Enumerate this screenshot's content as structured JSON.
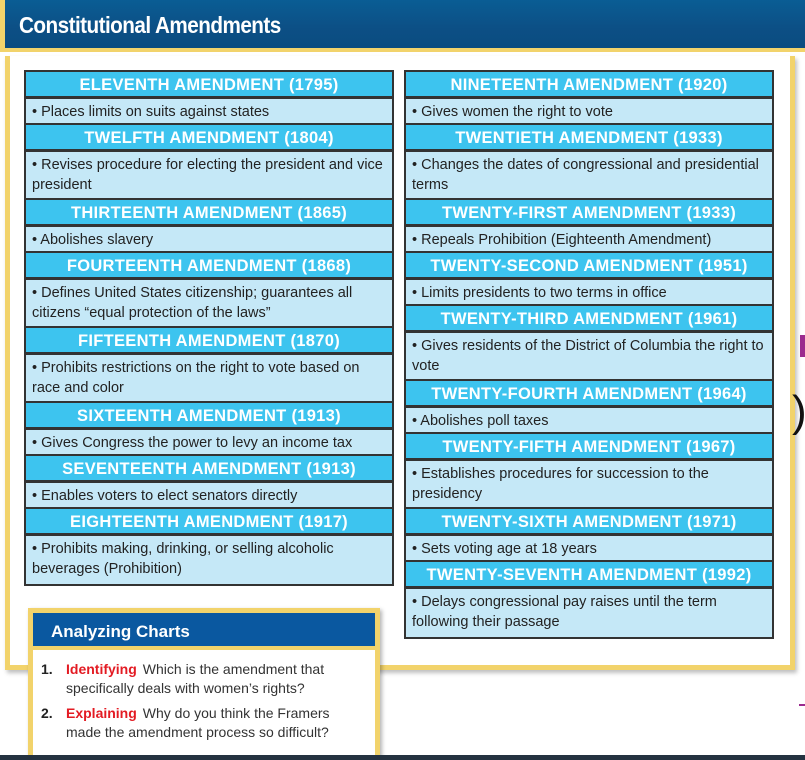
{
  "title": "Constitutional Amendments",
  "left": [
    {
      "h": "ELEVENTH AMENDMENT (1795)",
      "d": "• Places limits on suits against states",
      "lines": 1
    },
    {
      "h": "TWELFTH AMENDMENT (1804)",
      "d": "• Revises procedure for electing the president and vice president",
      "lines": 2
    },
    {
      "h": "THIRTEENTH AMENDMENT (1865)",
      "d": "• Abolishes slavery",
      "lines": 1
    },
    {
      "h": "FOURTEENTH AMENDMENT (1868)",
      "d": "• Defines United States citizenship; guarantees all citizens “equal protection of the laws”",
      "lines": 2
    },
    {
      "h": "FIFTEENTH AMENDMENT (1870)",
      "d": "• Prohibits restrictions on the right to vote based on race and color",
      "lines": 2
    },
    {
      "h": "SIXTEENTH AMENDMENT (1913)",
      "d": "• Gives Congress the power to levy an income tax",
      "lines": 1
    },
    {
      "h": "SEVENTEENTH AMENDMENT (1913)",
      "d": "• Enables voters to elect senators directly",
      "lines": 1
    },
    {
      "h": "EIGHTEENTH AMENDMENT (1917)",
      "d": "• Prohibits making, drinking, or selling alcoholic beverages (Prohibition)",
      "lines": 2
    }
  ],
  "right": [
    {
      "h": "NINETEENTH AMENDMENT (1920)",
      "d": "• Gives women the right to vote",
      "lines": 1
    },
    {
      "h": "TWENTIETH AMENDMENT (1933)",
      "d": "• Changes the dates of congressional and presidential terms",
      "lines": 2
    },
    {
      "h": "TWENTY-FIRST AMENDMENT (1933)",
      "d": "• Repeals Prohibition (Eighteenth Amendment)",
      "lines": 1
    },
    {
      "h": "TWENTY-SECOND AMENDMENT (1951)",
      "d": "• Limits presidents to two terms in office",
      "lines": 1
    },
    {
      "h": "TWENTY-THIRD AMENDMENT (1961)",
      "d": "• Gives residents of the District of Columbia the right to vote",
      "lines": 2
    },
    {
      "h": "TWENTY-FOURTH AMENDMENT (1964)",
      "d": "• Abolishes poll taxes",
      "lines": 1
    },
    {
      "h": "TWENTY-FIFTH AMENDMENT (1967)",
      "d": "• Establishes procedures for succession to the presidency",
      "lines": 2
    },
    {
      "h": "TWENTY-SIXTH AMENDMENT (1971)",
      "d": "• Sets voting age at 18 years",
      "lines": 1
    },
    {
      "h": "TWENTY-SEVENTH AMENDMENT (1992)",
      "d": "• Delays congressional pay raises until the term following their passage",
      "lines": 2
    }
  ],
  "analyzing": {
    "title": "Analyzing Charts",
    "questions": [
      {
        "num": "1.",
        "keyword": "Identifying",
        "text": "Which is the amendment that specifically deals with women’s rights?"
      },
      {
        "num": "2.",
        "keyword": "Explaining",
        "text": "Why do you think the Framers made the amendment process so difficult?"
      }
    ]
  },
  "colors": {
    "header_blue": "#0c4f85",
    "row_header": "#3dc4ef",
    "row_body": "#c5e8f7",
    "frame_gold": "#f2d36b",
    "keyword_red": "#e31b23"
  }
}
